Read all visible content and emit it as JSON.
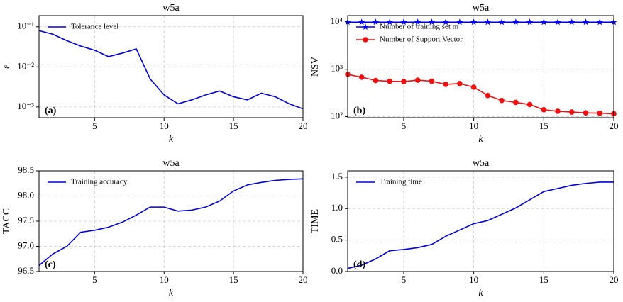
{
  "chart_data": [
    {
      "type": "line",
      "title": "w5a",
      "xlabel": "k",
      "ylabel": "ε",
      "annotation": "(a)",
      "yscale": "log",
      "grid": true,
      "legend": "upper left",
      "x": [
        1,
        2,
        3,
        4,
        5,
        6,
        7,
        8,
        9,
        10,
        11,
        12,
        13,
        14,
        15,
        16,
        17,
        18,
        19,
        20
      ],
      "xlim": [
        1,
        20
      ],
      "xticks": [
        5,
        10,
        15,
        20
      ],
      "ylim": [
        0.00054,
        0.19
      ],
      "yticks": [
        {
          "value": 0.001,
          "label": "10⁻³"
        },
        {
          "value": 0.01,
          "label": "10⁻²"
        },
        {
          "value": 0.1,
          "label": "10⁻¹"
        }
      ],
      "series": [
        {
          "name": "Tolerance level",
          "color": "#0000dd",
          "values": [
            0.08,
            0.065,
            0.045,
            0.033,
            0.026,
            0.018,
            0.022,
            0.028,
            0.005,
            0.002,
            0.0012,
            0.0015,
            0.002,
            0.0025,
            0.0018,
            0.0015,
            0.0022,
            0.0018,
            0.0012,
            0.0009
          ]
        }
      ]
    },
    {
      "type": "line",
      "title": "w5a",
      "xlabel": "k",
      "ylabel": "NSV",
      "annotation": "(b)",
      "yscale": "log",
      "grid": true,
      "legend": "upper left",
      "x": [
        1,
        2,
        3,
        4,
        5,
        6,
        7,
        8,
        9,
        10,
        11,
        12,
        13,
        14,
        15,
        16,
        17,
        18,
        19,
        20
      ],
      "xlim": [
        1,
        20
      ],
      "xticks": [
        5,
        10,
        15,
        20
      ],
      "ylim": [
        95,
        13600
      ],
      "yticks": [
        {
          "value": 100,
          "label": "10²"
        },
        {
          "value": 1000,
          "label": "10³"
        },
        {
          "value": 10000,
          "label": "10⁴"
        }
      ],
      "series": [
        {
          "name": "Number of training set m",
          "color": "#0000ee",
          "marker": "star",
          "values": [
            9888,
            9888,
            9888,
            9888,
            9888,
            9888,
            9888,
            9888,
            9888,
            9888,
            9888,
            9888,
            9888,
            9888,
            9888,
            9888,
            9888,
            9888,
            9888,
            9888
          ]
        },
        {
          "name": "Number of Support Vector",
          "color": "#ee1111",
          "marker": "circle",
          "values": [
            780,
            680,
            580,
            560,
            550,
            590,
            560,
            480,
            500,
            420,
            280,
            220,
            200,
            180,
            140,
            130,
            125,
            120,
            118,
            115
          ]
        }
      ]
    },
    {
      "type": "line",
      "title": "w5a",
      "xlabel": "k",
      "ylabel": "TACC",
      "annotation": "(c)",
      "grid": true,
      "legend": "upper left",
      "x": [
        1,
        2,
        3,
        4,
        5,
        6,
        7,
        8,
        9,
        10,
        11,
        12,
        13,
        14,
        15,
        16,
        17,
        18,
        19,
        20
      ],
      "xlim": [
        1,
        20
      ],
      "xticks": [
        5,
        10,
        15,
        20
      ],
      "ylim": [
        96.5,
        98.5
      ],
      "yticks": [
        96.5,
        {
          "value": 97,
          "label": "97.0"
        },
        97.5,
        {
          "value": 98,
          "label": "98.0"
        },
        98.5
      ],
      "series": [
        {
          "name": "Training accuracy",
          "color": "#0000dd",
          "values": [
            96.62,
            96.85,
            97.0,
            97.28,
            97.32,
            97.38,
            97.48,
            97.62,
            97.78,
            97.78,
            97.7,
            97.72,
            97.78,
            97.9,
            98.1,
            98.22,
            98.27,
            98.31,
            98.33,
            98.34
          ]
        }
      ]
    },
    {
      "type": "line",
      "title": "w5a",
      "xlabel": "k",
      "ylabel": "TIME",
      "annotation": "(d)",
      "grid": true,
      "legend": "upper left",
      "x": [
        1,
        2,
        3,
        4,
        5,
        6,
        7,
        8,
        9,
        10,
        11,
        12,
        13,
        14,
        15,
        16,
        17,
        18,
        19,
        20
      ],
      "xlim": [
        1,
        20
      ],
      "xticks": [
        5,
        10,
        15,
        20
      ],
      "ylim": [
        0,
        1.6
      ],
      "yticks": [
        {
          "value": 0,
          "label": "0.0"
        },
        0.5,
        {
          "value": 1,
          "label": "1.0"
        },
        1.5
      ],
      "series": [
        {
          "name": "Training time",
          "color": "#0000dd",
          "values": [
            0.05,
            0.1,
            0.2,
            0.33,
            0.35,
            0.38,
            0.43,
            0.56,
            0.66,
            0.76,
            0.81,
            0.91,
            1.01,
            1.14,
            1.27,
            1.32,
            1.37,
            1.4,
            1.42,
            1.42
          ]
        }
      ]
    }
  ]
}
